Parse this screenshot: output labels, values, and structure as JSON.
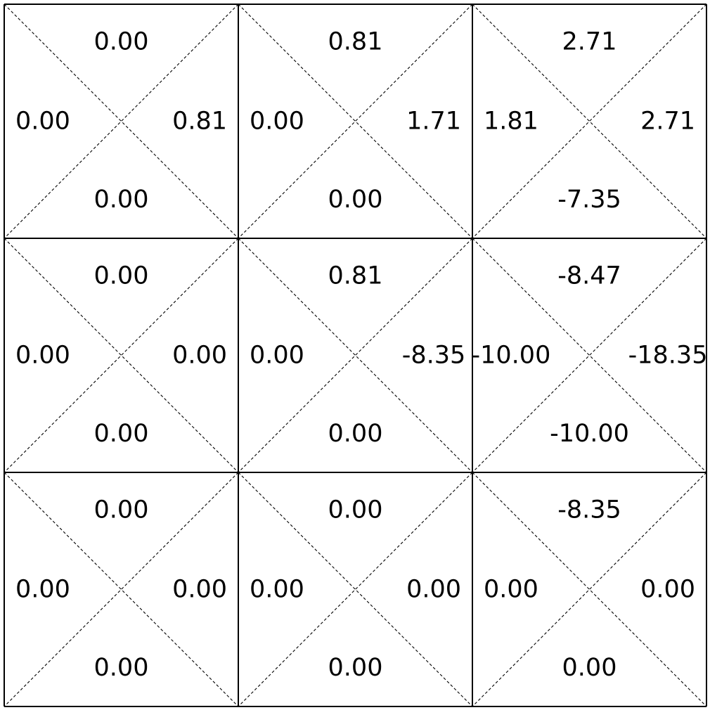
{
  "grid": {
    "rows": 3,
    "cols": 3,
    "cells": [
      [
        {
          "up": "0.00",
          "left": "0.00",
          "right": "0.81",
          "down": "0.00"
        },
        {
          "up": "0.81",
          "left": "0.00",
          "right": "1.71",
          "down": "0.00"
        },
        {
          "up": "2.71",
          "left": "1.81",
          "right": "2.71",
          "down": "-7.35"
        }
      ],
      [
        {
          "up": "0.00",
          "left": "0.00",
          "right": "0.00",
          "down": "0.00"
        },
        {
          "up": "0.81",
          "left": "0.00",
          "right": "-8.35",
          "down": "0.00"
        },
        {
          "up": "-8.47",
          "left": "-10.00",
          "right": "-18.35",
          "down": "-10.00"
        }
      ],
      [
        {
          "up": "0.00",
          "left": "0.00",
          "right": "0.00",
          "down": "0.00"
        },
        {
          "up": "0.00",
          "left": "0.00",
          "right": "0.00",
          "down": "0.00"
        },
        {
          "up": "-8.35",
          "left": "0.00",
          "right": "0.00",
          "down": "0.00"
        }
      ]
    ]
  },
  "colors": {
    "grid_line": "#000000",
    "diagonal_line": "#000000",
    "text": "#000000",
    "background": "#ffffff"
  }
}
